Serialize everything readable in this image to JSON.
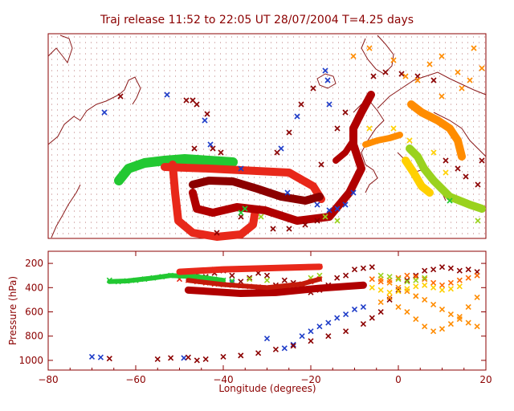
{
  "chart_data": {
    "type": "scatter",
    "title": "Traj release 11:52 to 22:05 UT 28/07/2004     T=4.25 days",
    "map_panel": {
      "description": "trajectory map, North Atlantic region",
      "grid": "dotted"
    },
    "profile_panel": {
      "xlabel": "Longitude  (degrees)",
      "ylabel": "Pressure  (hPa)",
      "xlim": [
        -80,
        20
      ],
      "ylim": [
        1080,
        100
      ],
      "xticks": [
        "−80",
        "−60",
        "−40",
        "−20",
        "0",
        "20"
      ],
      "yticks": [
        "200",
        "400",
        "600",
        "800",
        "1000"
      ]
    },
    "series": [
      {
        "color": "#1e3cc8",
        "marker": "x",
        "points": [
          [
            -70,
            970
          ],
          [
            -68,
            975
          ],
          [
            -49,
            980
          ],
          [
            -38,
            360
          ],
          [
            -30,
            820
          ],
          [
            -26,
            900
          ],
          [
            -24,
            870
          ],
          [
            -22,
            800
          ],
          [
            -20,
            760
          ],
          [
            -18,
            720
          ],
          [
            -16,
            690
          ],
          [
            -14,
            650
          ],
          [
            -12,
            620
          ],
          [
            -10,
            580
          ],
          [
            -8,
            560
          ]
        ]
      },
      {
        "color": "#8b0000",
        "marker": "x",
        "points": [
          [
            -66,
            985
          ],
          [
            -55,
            990
          ],
          [
            -52,
            980
          ],
          [
            -48,
            975
          ],
          [
            -46,
            1000
          ],
          [
            -44,
            990
          ],
          [
            -40,
            970
          ],
          [
            -36,
            960
          ],
          [
            -32,
            940
          ],
          [
            -28,
            910
          ],
          [
            -24,
            880
          ],
          [
            -20,
            840
          ],
          [
            -16,
            800
          ],
          [
            -12,
            760
          ],
          [
            -8,
            700
          ],
          [
            -6,
            650
          ],
          [
            -4,
            600
          ],
          [
            -2,
            500
          ],
          [
            0,
            420
          ],
          [
            2,
            340
          ],
          [
            4,
            300
          ],
          [
            6,
            260
          ],
          [
            8,
            250
          ],
          [
            10,
            230
          ],
          [
            12,
            240
          ],
          [
            14,
            260
          ],
          [
            16,
            250
          ],
          [
            18,
            270
          ],
          [
            -10,
            250
          ],
          [
            -8,
            240
          ],
          [
            -6,
            230
          ],
          [
            -12,
            300
          ],
          [
            -14,
            320
          ],
          [
            -16,
            380
          ],
          [
            -18,
            420
          ],
          [
            -20,
            440
          ],
          [
            -22,
            400
          ],
          [
            -24,
            360
          ],
          [
            -26,
            340
          ],
          [
            -28,
            380
          ],
          [
            -30,
            300
          ],
          [
            -32,
            280
          ],
          [
            -34,
            320
          ],
          [
            -36,
            350
          ],
          [
            -38,
            300
          ],
          [
            -40,
            260
          ],
          [
            -42,
            280
          ],
          [
            -44,
            310
          ],
          [
            -46,
            290
          ],
          [
            -48,
            270
          ]
        ]
      },
      {
        "color": "#ff8c00",
        "marker": "x",
        "points": [
          [
            -4,
            330
          ],
          [
            -2,
            360
          ],
          [
            0,
            400
          ],
          [
            2,
            430
          ],
          [
            4,
            470
          ],
          [
            6,
            500
          ],
          [
            8,
            540
          ],
          [
            10,
            580
          ],
          [
            12,
            620
          ],
          [
            14,
            660
          ],
          [
            16,
            690
          ],
          [
            18,
            720
          ],
          [
            6,
            720
          ],
          [
            8,
            760
          ],
          [
            10,
            740
          ],
          [
            12,
            700
          ],
          [
            14,
            640
          ],
          [
            16,
            560
          ],
          [
            18,
            480
          ],
          [
            0,
            560
          ],
          [
            2,
            600
          ],
          [
            4,
            660
          ],
          [
            -2,
            480
          ],
          [
            -4,
            520
          ]
        ]
      },
      {
        "color": "#ff6a00",
        "marker": "x",
        "points": [
          [
            -6,
            330
          ],
          [
            -4,
            350
          ],
          [
            -2,
            340
          ],
          [
            0,
            320
          ],
          [
            2,
            300
          ],
          [
            4,
            310
          ],
          [
            6,
            330
          ],
          [
            8,
            360
          ],
          [
            10,
            380
          ],
          [
            12,
            360
          ],
          [
            14,
            340
          ],
          [
            16,
            320
          ],
          [
            18,
            300
          ]
        ]
      },
      {
        "color": "#ffd000",
        "marker": "x",
        "points": [
          [
            -6,
            400
          ],
          [
            -4,
            420
          ],
          [
            -2,
            440
          ],
          [
            0,
            430
          ],
          [
            2,
            410
          ],
          [
            4,
            390
          ],
          [
            6,
            380
          ],
          [
            8,
            400
          ],
          [
            10,
            420
          ],
          [
            12,
            410
          ],
          [
            14,
            390
          ]
        ]
      },
      {
        "color": "#9ad21e",
        "marker": "x",
        "points": [
          [
            -4,
            300
          ],
          [
            -2,
            310
          ],
          [
            0,
            330
          ],
          [
            2,
            350
          ],
          [
            4,
            340
          ],
          [
            6,
            320
          ],
          [
            -20,
            320
          ],
          [
            -18,
            300
          ],
          [
            -34,
            330
          ],
          [
            -30,
            340
          ]
        ]
      },
      {
        "color": "#22c832",
        "marker": "x",
        "points": [
          [
            -66,
            340
          ],
          [
            -64,
            350
          ],
          [
            -62,
            345
          ],
          [
            -60,
            340
          ],
          [
            -58,
            330
          ],
          [
            -56,
            320
          ],
          [
            -54,
            310
          ],
          [
            -52,
            300
          ],
          [
            -48,
            300
          ],
          [
            -46,
            310
          ],
          [
            -44,
            320
          ],
          [
            -42,
            330
          ],
          [
            -40,
            340
          ],
          [
            -38,
            345
          ]
        ]
      },
      {
        "color": "#e8281a",
        "marker": "x",
        "points": [
          [
            -50,
            280
          ],
          [
            -48,
            270
          ],
          [
            -46,
            260
          ],
          [
            -44,
            255
          ],
          [
            -42,
            250
          ],
          [
            -40,
            248
          ],
          [
            -38,
            246
          ],
          [
            -36,
            244
          ],
          [
            -34,
            242
          ],
          [
            -32,
            240
          ],
          [
            -30,
            238
          ],
          [
            -28,
            236
          ],
          [
            -26,
            234
          ],
          [
            -24,
            232
          ],
          [
            -22,
            230
          ],
          [
            -20,
            228
          ],
          [
            -18,
            226
          ],
          [
            -50,
            330
          ],
          [
            -48,
            340
          ],
          [
            -46,
            350
          ],
          [
            -44,
            360
          ],
          [
            -42,
            370
          ],
          [
            -40,
            375
          ],
          [
            -38,
            380
          ],
          [
            -36,
            385
          ],
          [
            -34,
            390
          ],
          [
            -32,
            395
          ],
          [
            -30,
            400
          ],
          [
            -28,
            395
          ],
          [
            -26,
            390
          ],
          [
            -24,
            380
          ],
          [
            -22,
            370
          ],
          [
            -20,
            350
          ],
          [
            -18,
            330
          ]
        ]
      },
      {
        "color": "#b00000",
        "marker": "x",
        "points": [
          [
            -48,
            420
          ],
          [
            -46,
            425
          ],
          [
            -44,
            430
          ],
          [
            -42,
            435
          ],
          [
            -40,
            440
          ],
          [
            -38,
            445
          ],
          [
            -36,
            448
          ],
          [
            -34,
            450
          ],
          [
            -32,
            448
          ],
          [
            -30,
            445
          ],
          [
            -28,
            440
          ],
          [
            -26,
            435
          ],
          [
            -24,
            428
          ],
          [
            -22,
            420
          ],
          [
            -20,
            412
          ],
          [
            -18,
            405
          ],
          [
            -16,
            398
          ],
          [
            -14,
            392
          ],
          [
            -12,
            388
          ],
          [
            -10,
            384
          ],
          [
            -8,
            380
          ]
        ]
      }
    ]
  }
}
